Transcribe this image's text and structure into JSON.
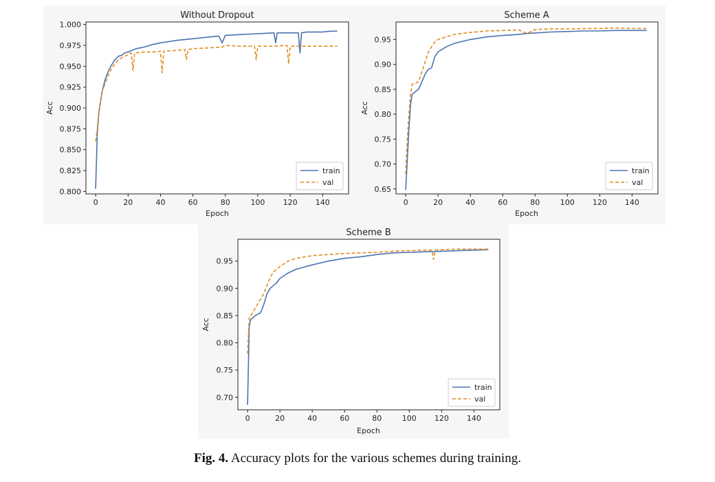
{
  "figure": {
    "caption_label": "Fig. 4.",
    "caption_text": "Accuracy plots for the various schemes during training."
  },
  "colors": {
    "train": "#4a72b0",
    "val": "#e08a1e",
    "axis": "#222222",
    "panel_bg": "#f6f6f6"
  },
  "chart_data": [
    {
      "type": "line",
      "title": "Without Dropout",
      "xlabel": "Epoch",
      "ylabel": "Acc",
      "xlim": [
        -6,
        156
      ],
      "ylim": [
        0.797,
        1.003
      ],
      "xticks": [
        0,
        20,
        40,
        60,
        80,
        100,
        120,
        140
      ],
      "yticks": [
        0.8,
        0.825,
        0.85,
        0.875,
        0.9,
        0.925,
        0.95,
        0.975,
        1.0
      ],
      "ytick_labels": [
        "0.800",
        "0.825",
        "0.850",
        "0.875",
        "0.900",
        "0.925",
        "0.950",
        "0.975",
        "1.000"
      ],
      "legend": {
        "position": "lower-right",
        "entries": [
          "train",
          "val"
        ]
      },
      "series": [
        {
          "name": "train",
          "style": "solid",
          "x": [
            0,
            1,
            2,
            4,
            6,
            8,
            10,
            12,
            14,
            16,
            18,
            20,
            25,
            30,
            35,
            40,
            50,
            60,
            70,
            76,
            78,
            80,
            90,
            100,
            110,
            111,
            112,
            120,
            125,
            126,
            127,
            130,
            140,
            145,
            149
          ],
          "values": [
            0.803,
            0.87,
            0.895,
            0.92,
            0.935,
            0.945,
            0.952,
            0.958,
            0.962,
            0.963,
            0.966,
            0.967,
            0.971,
            0.973,
            0.976,
            0.978,
            0.981,
            0.983,
            0.985,
            0.986,
            0.978,
            0.987,
            0.988,
            0.989,
            0.99,
            0.978,
            0.99,
            0.99,
            0.99,
            0.966,
            0.99,
            0.991,
            0.991,
            0.992,
            0.992
          ]
        },
        {
          "name": "val",
          "style": "dashed",
          "x": [
            0,
            1,
            2,
            4,
            6,
            8,
            10,
            12,
            14,
            16,
            18,
            20,
            22,
            23,
            24,
            30,
            35,
            40,
            41,
            42,
            50,
            55,
            56,
            57,
            60,
            70,
            78,
            80,
            90,
            98,
            99,
            100,
            110,
            118,
            119,
            120,
            130,
            140,
            149
          ],
          "values": [
            0.86,
            0.875,
            0.895,
            0.92,
            0.93,
            0.94,
            0.948,
            0.953,
            0.958,
            0.96,
            0.962,
            0.964,
            0.966,
            0.945,
            0.966,
            0.967,
            0.967,
            0.968,
            0.942,
            0.968,
            0.969,
            0.97,
            0.958,
            0.97,
            0.971,
            0.972,
            0.973,
            0.975,
            0.974,
            0.974,
            0.958,
            0.974,
            0.974,
            0.975,
            0.953,
            0.974,
            0.974,
            0.974,
            0.974
          ]
        }
      ]
    },
    {
      "type": "line",
      "title": "Scheme A",
      "xlabel": "Epoch",
      "ylabel": "Acc",
      "xlim": [
        -6,
        156
      ],
      "ylim": [
        0.64,
        0.985
      ],
      "xticks": [
        0,
        20,
        40,
        60,
        80,
        100,
        120,
        140
      ],
      "yticks": [
        0.65,
        0.7,
        0.75,
        0.8,
        0.85,
        0.9,
        0.95
      ],
      "ytick_labels": [
        "0.65",
        "0.70",
        "0.75",
        "0.80",
        "0.85",
        "0.90",
        "0.95"
      ],
      "legend": {
        "position": "lower-right",
        "entries": [
          "train",
          "val"
        ]
      },
      "series": [
        {
          "name": "train",
          "style": "solid",
          "x": [
            0,
            1,
            2,
            3,
            4,
            6,
            8,
            10,
            12,
            14,
            16,
            18,
            20,
            25,
            30,
            40,
            50,
            60,
            70,
            75,
            80,
            90,
            100,
            110,
            120,
            130,
            140,
            149
          ],
          "values": [
            0.648,
            0.71,
            0.77,
            0.82,
            0.84,
            0.845,
            0.85,
            0.865,
            0.88,
            0.89,
            0.893,
            0.915,
            0.925,
            0.935,
            0.942,
            0.95,
            0.955,
            0.958,
            0.96,
            0.962,
            0.963,
            0.965,
            0.966,
            0.967,
            0.967,
            0.968,
            0.968,
            0.968
          ]
        },
        {
          "name": "val",
          "style": "dashed",
          "x": [
            0,
            1,
            2,
            3,
            4,
            6,
            8,
            10,
            12,
            14,
            16,
            18,
            20,
            25,
            30,
            40,
            50,
            60,
            70,
            75,
            80,
            90,
            100,
            110,
            120,
            130,
            140,
            149
          ],
          "values": [
            0.68,
            0.75,
            0.8,
            0.84,
            0.86,
            0.862,
            0.865,
            0.885,
            0.905,
            0.925,
            0.935,
            0.945,
            0.95,
            0.955,
            0.96,
            0.964,
            0.967,
            0.968,
            0.969,
            0.962,
            0.97,
            0.971,
            0.971,
            0.972,
            0.972,
            0.973,
            0.972,
            0.972
          ]
        }
      ]
    },
    {
      "type": "line",
      "title": "Scheme B",
      "xlabel": "Epoch",
      "ylabel": "Acc",
      "xlim": [
        -6,
        156
      ],
      "ylim": [
        0.677,
        0.99
      ],
      "xticks": [
        0,
        20,
        40,
        60,
        80,
        100,
        120,
        140
      ],
      "yticks": [
        0.7,
        0.75,
        0.8,
        0.85,
        0.9,
        0.95
      ],
      "ytick_labels": [
        "0.70",
        "0.75",
        "0.80",
        "0.85",
        "0.90",
        "0.95"
      ],
      "legend": {
        "position": "lower-right",
        "entries": [
          "train",
          "val"
        ]
      },
      "series": [
        {
          "name": "train",
          "style": "solid",
          "x": [
            0,
            1,
            2,
            3,
            4,
            6,
            8,
            10,
            12,
            14,
            16,
            18,
            20,
            25,
            30,
            40,
            50,
            60,
            70,
            80,
            90,
            100,
            110,
            120,
            130,
            140,
            149
          ],
          "values": [
            0.686,
            0.83,
            0.843,
            0.845,
            0.848,
            0.852,
            0.855,
            0.87,
            0.89,
            0.9,
            0.905,
            0.91,
            0.918,
            0.928,
            0.935,
            0.943,
            0.95,
            0.955,
            0.958,
            0.962,
            0.965,
            0.966,
            0.967,
            0.968,
            0.969,
            0.97,
            0.971
          ]
        },
        {
          "name": "val",
          "style": "dashed",
          "x": [
            0,
            1,
            2,
            3,
            4,
            6,
            8,
            10,
            12,
            14,
            16,
            18,
            20,
            25,
            30,
            40,
            50,
            60,
            70,
            80,
            90,
            100,
            110,
            114,
            115,
            116,
            120,
            130,
            140,
            149
          ],
          "values": [
            0.78,
            0.845,
            0.85,
            0.855,
            0.86,
            0.87,
            0.88,
            0.89,
            0.905,
            0.92,
            0.93,
            0.935,
            0.94,
            0.95,
            0.955,
            0.96,
            0.962,
            0.964,
            0.965,
            0.966,
            0.968,
            0.969,
            0.97,
            0.97,
            0.953,
            0.97,
            0.971,
            0.972,
            0.972,
            0.972
          ]
        }
      ]
    }
  ]
}
